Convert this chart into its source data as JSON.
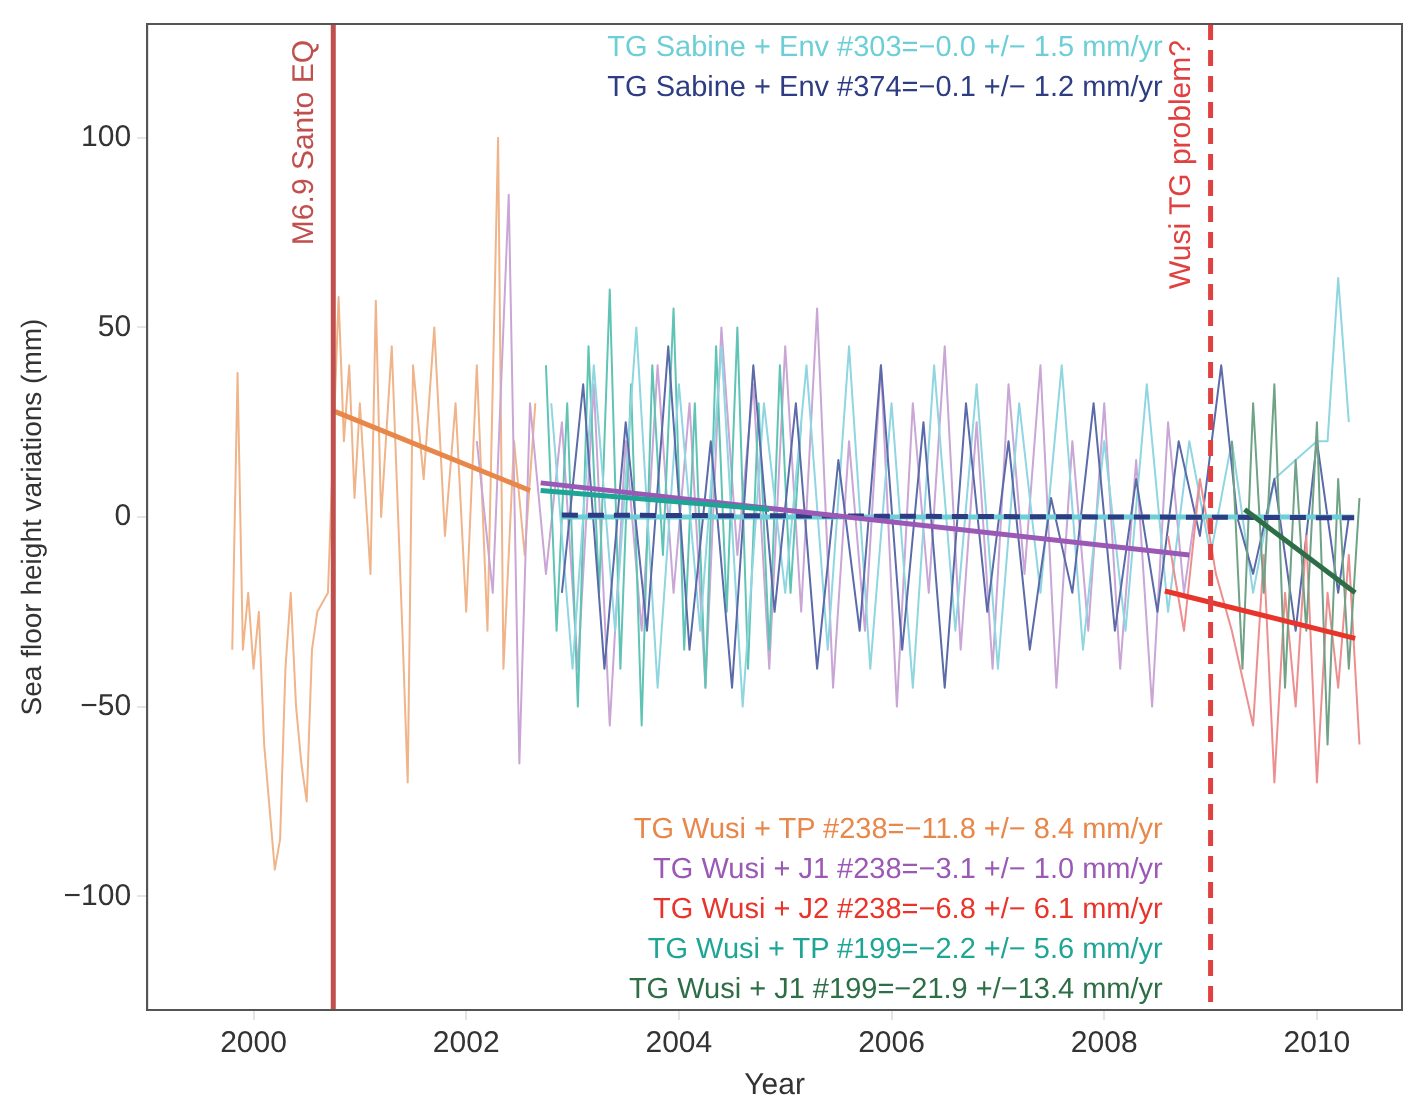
{
  "chart_data": {
    "type": "line",
    "xlabel": "Year",
    "ylabel": "Sea floor height variations (mm)",
    "xlim": [
      1999,
      2010.8
    ],
    "ylim": [
      -130,
      130
    ],
    "xticks": [
      2000,
      2002,
      2004,
      2006,
      2008,
      2010
    ],
    "yticks": [
      -100,
      -50,
      0,
      50,
      100
    ],
    "grid": false,
    "legend": false,
    "marker": "none",
    "series": [
      {
        "color": "#f0b48a",
        "x": [
          1999.8,
          1999.85,
          1999.9,
          1999.95,
          2000.0,
          2000.05,
          2000.1,
          2000.2,
          2000.25,
          2000.3,
          2000.35,
          2000.4,
          2000.45,
          2000.5,
          2000.55,
          2000.6,
          2000.7,
          2000.8,
          2000.85,
          2000.9,
          2000.95,
          2001.0,
          2001.1,
          2001.15,
          2001.2,
          2001.3,
          2001.4,
          2001.45,
          2001.5,
          2001.6,
          2001.7,
          2001.8,
          2001.9,
          2002.0,
          2002.1,
          2002.2,
          2002.3,
          2002.35,
          2002.45,
          2002.55,
          2002.65
        ],
        "values": [
          -35,
          38,
          -35,
          -20,
          -40,
          -25,
          -60,
          -93,
          -85,
          -40,
          -20,
          -50,
          -65,
          -75,
          -35,
          -25,
          -20,
          58,
          20,
          40,
          5,
          30,
          -15,
          57,
          0,
          45,
          -30,
          -70,
          40,
          10,
          50,
          -5,
          30,
          -25,
          40,
          -30,
          100,
          -40,
          20,
          -10,
          30
        ]
      },
      {
        "color": "#c9a6d6",
        "x": [
          2002.1,
          2002.25,
          2002.4,
          2002.5,
          2002.6,
          2002.75,
          2002.9,
          2003.05,
          2003.2,
          2003.35,
          2003.5,
          2003.65,
          2003.8,
          2003.95,
          2004.1,
          2004.25,
          2004.4,
          2004.55,
          2004.7,
          2004.85,
          2005.0,
          2005.15,
          2005.3,
          2005.45,
          2005.6,
          2005.75,
          2005.9,
          2006.05,
          2006.2,
          2006.35,
          2006.5,
          2006.65,
          2006.8,
          2006.95,
          2007.1,
          2007.25,
          2007.4,
          2007.55,
          2007.7,
          2007.85,
          2008.0,
          2008.15,
          2008.3,
          2008.45,
          2008.6,
          2008.75,
          2008.9
        ],
        "values": [
          20,
          -20,
          85,
          -65,
          30,
          -15,
          25,
          -40,
          35,
          -55,
          20,
          -30,
          40,
          -20,
          30,
          -45,
          50,
          -10,
          35,
          -40,
          45,
          -25,
          55,
          -45,
          20,
          -30,
          40,
          -50,
          30,
          -20,
          45,
          -35,
          25,
          -40,
          35,
          -15,
          40,
          -45,
          20,
          -30,
          30,
          -40,
          15,
          -50,
          25,
          -20,
          10
        ]
      },
      {
        "color": "#5fc4b4",
        "x": [
          2002.75,
          2002.85,
          2002.95,
          2003.05,
          2003.15,
          2003.25,
          2003.35,
          2003.45,
          2003.55,
          2003.65,
          2003.75,
          2003.85,
          2003.95,
          2004.05,
          2004.15,
          2004.25,
          2004.35,
          2004.45,
          2004.55,
          2004.65,
          2004.75,
          2004.85,
          2004.95,
          2005.05,
          2005.15
        ],
        "values": [
          40,
          -30,
          30,
          -50,
          45,
          -20,
          60,
          -40,
          35,
          -55,
          40,
          -10,
          55,
          -35,
          30,
          -45,
          45,
          -25,
          50,
          -40,
          30,
          -35,
          40,
          -20,
          25
        ]
      },
      {
        "color": "#8fd6e0",
        "x": [
          2002.8,
          2003.0,
          2003.2,
          2003.4,
          2003.6,
          2003.8,
          2004.0,
          2004.2,
          2004.4,
          2004.6,
          2004.8,
          2005.0,
          2005.2,
          2005.4,
          2005.6,
          2005.8,
          2006.0,
          2006.2,
          2006.4,
          2006.6,
          2006.8,
          2007.0,
          2007.2,
          2007.4,
          2007.6,
          2007.8,
          2008.0,
          2008.2,
          2008.4,
          2008.6,
          2008.8,
          2009.0,
          2009.2,
          2009.4,
          2009.6,
          2009.8,
          2010.0,
          2010.1,
          2010.2,
          2010.3
        ],
        "values": [
          30,
          -40,
          40,
          -30,
          50,
          -45,
          35,
          -30,
          45,
          -50,
          30,
          -20,
          40,
          -35,
          45,
          -40,
          30,
          -45,
          40,
          -30,
          35,
          -40,
          30,
          -20,
          40,
          -35,
          20,
          -30,
          35,
          -25,
          20,
          -10,
          20,
          -20,
          10,
          15,
          20,
          20,
          63,
          25
        ]
      },
      {
        "color": "#5b6aa8",
        "x": [
          2002.9,
          2003.1,
          2003.3,
          2003.5,
          2003.7,
          2003.9,
          2004.1,
          2004.3,
          2004.5,
          2004.7,
          2004.9,
          2005.1,
          2005.3,
          2005.5,
          2005.7,
          2005.9,
          2006.1,
          2006.3,
          2006.5,
          2006.7,
          2006.9,
          2007.1,
          2007.3,
          2007.5,
          2007.7,
          2007.9,
          2008.1,
          2008.3,
          2008.5,
          2008.7,
          2008.9,
          2009.1,
          2009.25,
          2009.4,
          2009.6,
          2009.8,
          2010.0,
          2010.2,
          2010.3
        ],
        "values": [
          -20,
          35,
          -40,
          25,
          -30,
          45,
          -35,
          20,
          -45,
          40,
          -25,
          30,
          -40,
          15,
          -30,
          40,
          -35,
          25,
          -45,
          30,
          -25,
          20,
          -35,
          5,
          -20,
          30,
          -30,
          10,
          -25,
          20,
          -5,
          40,
          0,
          -15,
          10,
          -30,
          20,
          -20,
          0
        ]
      },
      {
        "color": "#ee8f8f",
        "x": [
          2008.6,
          2008.75,
          2008.9,
          2009.05,
          2009.2,
          2009.4,
          2009.5,
          2009.6,
          2009.7,
          2009.8,
          2009.9,
          2010.0,
          2010.1,
          2010.2,
          2010.3,
          2010.4
        ],
        "values": [
          -5,
          -30,
          10,
          -15,
          -30,
          -55,
          -10,
          -70,
          -20,
          -50,
          -5,
          -70,
          -20,
          -45,
          -10,
          -60
        ]
      },
      {
        "color": "#6fa287",
        "x": [
          2009.2,
          2009.3,
          2009.4,
          2009.5,
          2009.6,
          2009.7,
          2009.8,
          2009.9,
          2010.0,
          2010.1,
          2010.2,
          2010.3,
          2010.4
        ],
        "values": [
          20,
          -40,
          30,
          -20,
          35,
          -45,
          15,
          -30,
          25,
          -60,
          10,
          -40,
          5
        ]
      },
      {
        "name": "TG Sabine + Env #303=−0.0 +/− 1.5 mm/yr",
        "color": "#6ccfd6",
        "x": [
          2002.9,
          2010.35
        ],
        "values": [
          0,
          0
        ]
      },
      {
        "name": "TG Sabine + Env #374=−0.1 +/− 1.2 mm/yr",
        "color": "#2e3c84",
        "line_style": "dashed",
        "x": [
          2002.9,
          2010.35
        ],
        "values": [
          0.5,
          -0.2
        ]
      },
      {
        "name": "TG Wusi + TP #238=−11.8 +/− 8.4 mm/yr",
        "color": "#e8874a",
        "x": [
          2000.75,
          2002.6
        ],
        "values": [
          28,
          7
        ]
      },
      {
        "name": "TG Wusi + J1 #238=−3.1 +/− 1.0 mm/yr",
        "color": "#9b59b6",
        "x": [
          2002.7,
          2008.8
        ],
        "values": [
          9,
          -10
        ]
      },
      {
        "name": "TG Wusi + J2 #238=−6.8 +/− 6.1 mm/yr",
        "color": "#e8352b",
        "x": [
          2008.57,
          2010.36
        ],
        "values": [
          -19.5,
          -32
        ]
      },
      {
        "name": "TG Wusi + TP #199=−2.2 +/− 5.6 mm/yr",
        "color": "#1fa596",
        "x": [
          2002.7,
          2004.85
        ],
        "values": [
          7,
          2
        ]
      },
      {
        "name": "TG Wusi + J1 #199=−21.9 +/−13.4 mm/yr",
        "color": "#2e6e46",
        "x": [
          2009.32,
          2010.36
        ],
        "values": [
          2,
          -20
        ]
      }
    ],
    "ref_lines": [
      {
        "axis": "x",
        "value": 2000.75,
        "label": "M6.9 Santo EQ",
        "color": "#c0504d",
        "line_style": "solid"
      },
      {
        "axis": "x",
        "value": 2009.0,
        "label": "Wusi TG problem?",
        "color": "#e04040",
        "line_style": "dashed"
      }
    ]
  }
}
